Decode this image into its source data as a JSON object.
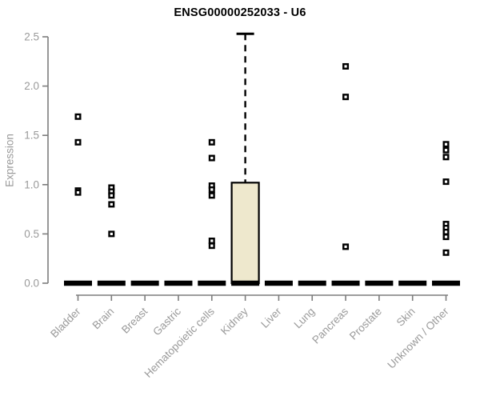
{
  "figure": {
    "kind": "boxplot-figure"
  },
  "chart_data": {
    "type": "boxplot",
    "title": "ENSG00000252033 - U6",
    "xlabel": "",
    "ylabel": "Expression",
    "ylim": [
      0,
      2.5
    ],
    "ytick_labels": [
      "0.0",
      "0.5",
      "1.0",
      "1.5",
      "2.0",
      "2.5"
    ],
    "grid": false,
    "legend": null,
    "colors": {
      "background": "#ffffff",
      "box_fill": "#EEE8CD",
      "box_stroke": "#000000",
      "median": "#000000",
      "whisker": "#000000",
      "outlier_stroke": "#000000",
      "outlier_fill": "#ffffff",
      "axis_line": "#7d7d7d",
      "axis_text": "#9a9a9a",
      "title_text": "#000000"
    },
    "categories": [
      "Bladder",
      "Brain",
      "Breast",
      "Gastric",
      "Hematopoietic cells",
      "Kidney",
      "Liver",
      "Lung",
      "Pancreas",
      "Prostate",
      "Skin",
      "Unknown / Other"
    ],
    "boxes": [
      {
        "category": "Bladder",
        "median": 0,
        "q1": 0,
        "q3": 0,
        "whisker_low": 0,
        "whisker_high": 0,
        "outliers": [
          1.69,
          1.43,
          0.94,
          0.92
        ]
      },
      {
        "category": "Brain",
        "median": 0,
        "q1": 0,
        "q3": 0,
        "whisker_low": 0,
        "whisker_high": 0,
        "outliers": [
          0.97,
          0.93,
          0.89,
          0.8,
          0.5
        ]
      },
      {
        "category": "Breast",
        "median": 0,
        "q1": 0,
        "q3": 0,
        "whisker_low": 0,
        "whisker_high": 0,
        "outliers": []
      },
      {
        "category": "Gastric",
        "median": 0,
        "q1": 0,
        "q3": 0,
        "whisker_low": 0,
        "whisker_high": 0,
        "outliers": []
      },
      {
        "category": "Hematopoietic cells",
        "median": 0,
        "q1": 0,
        "q3": 0,
        "whisker_low": 0,
        "whisker_high": 0,
        "outliers": [
          1.43,
          1.27,
          0.99,
          0.95,
          0.89,
          0.43,
          0.38
        ]
      },
      {
        "category": "Kidney",
        "median": 0,
        "q1": 0,
        "q3": 1.02,
        "whisker_low": 0,
        "whisker_high": 2.53,
        "outliers": []
      },
      {
        "category": "Liver",
        "median": 0,
        "q1": 0,
        "q3": 0,
        "whisker_low": 0,
        "whisker_high": 0,
        "outliers": []
      },
      {
        "category": "Lung",
        "median": 0,
        "q1": 0,
        "q3": 0,
        "whisker_low": 0,
        "whisker_high": 0,
        "outliers": []
      },
      {
        "category": "Pancreas",
        "median": 0,
        "q1": 0,
        "q3": 0,
        "whisker_low": 0,
        "whisker_high": 0,
        "outliers": [
          2.2,
          1.89,
          0.37
        ]
      },
      {
        "category": "Prostate",
        "median": 0,
        "q1": 0,
        "q3": 0,
        "whisker_low": 0,
        "whisker_high": 0,
        "outliers": []
      },
      {
        "category": "Skin",
        "median": 0,
        "q1": 0,
        "q3": 0,
        "whisker_low": 0,
        "whisker_high": 0,
        "outliers": []
      },
      {
        "category": "Unknown / Other",
        "median": 0,
        "q1": 0,
        "q3": 0,
        "whisker_low": 0,
        "whisker_high": 0,
        "outliers": [
          1.41,
          1.35,
          1.28,
          1.03,
          0.6,
          0.56,
          0.52,
          0.47,
          0.31
        ]
      }
    ]
  }
}
